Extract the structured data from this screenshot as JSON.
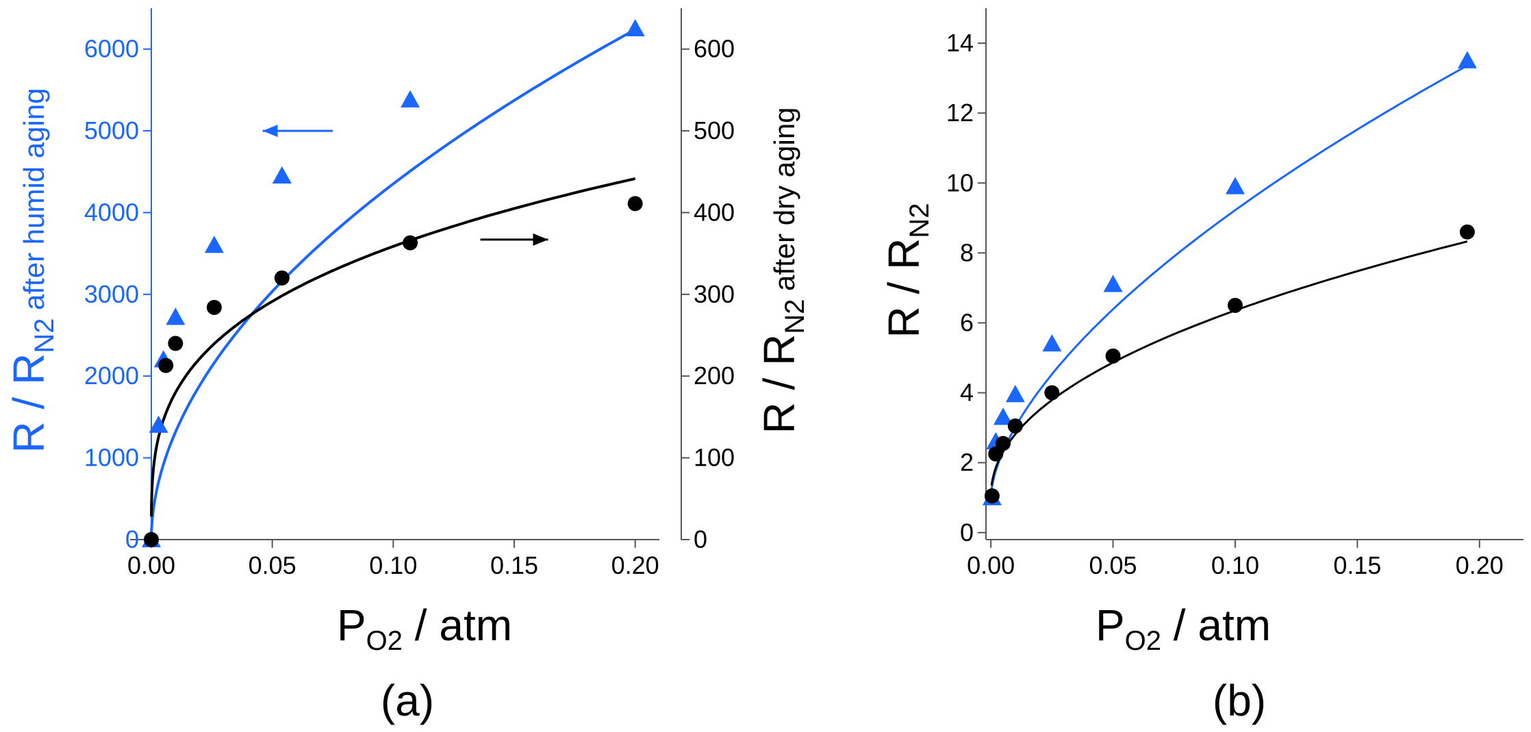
{
  "figure": {
    "panel_a_label": "(a)",
    "panel_b_label": "(b)"
  },
  "colors": {
    "humid": "#1a66ff",
    "dry": "#000000"
  },
  "chart_data": [
    {
      "id": "panel-a",
      "type": "scatter",
      "title": "",
      "xlabel_main": "P",
      "xlabel_sub": "O2",
      "xlabel_suffix": " / atm",
      "xlim": [
        0,
        0.21
      ],
      "xticks": [
        0,
        0.05,
        0.1,
        0.15,
        0.2
      ],
      "xtick_labels": [
        "0.00",
        "0.05",
        "0.10",
        "0.15",
        "0.20"
      ],
      "y_left": {
        "label_prefix": "R / R",
        "label_sub": "N2",
        "label_suffix": " after humid aging",
        "ylim": [
          0,
          6500
        ],
        "ticks": [
          0,
          1000,
          2000,
          3000,
          4000,
          5000,
          6000
        ],
        "tick_labels": [
          "0",
          "1000",
          "2000",
          "3000",
          "4000",
          "5000",
          "6000"
        ],
        "color": "#1a66ff"
      },
      "y_right": {
        "label_prefix": "R / R",
        "label_sub": "N2",
        "label_suffix": " after dry aging",
        "ylim": [
          0,
          650
        ],
        "ticks": [
          0,
          100,
          200,
          300,
          400,
          500,
          600
        ],
        "tick_labels": [
          "0",
          "100",
          "200",
          "300",
          "400",
          "500",
          "600"
        ],
        "color": "#000000"
      },
      "series": [
        {
          "name": "humid aging",
          "axis": "left",
          "marker": "triangle",
          "color": "#1a66ff",
          "x": [
            0,
            0.003,
            0.005,
            0.01,
            0.026,
            0.054,
            0.107,
            0.2
          ],
          "y": [
            0,
            1400,
            2200,
            2720,
            3600,
            4450,
            5380,
            6250
          ],
          "fit": {
            "a": 2.9,
            "b": 14400,
            "n": 0.52,
            "x0": 2e-05,
            "x1": 0.2
          }
        },
        {
          "name": "dry aging",
          "axis": "right",
          "marker": "circle",
          "color": "#000000",
          "x": [
            0,
            0.006,
            0.01,
            0.026,
            0.054,
            0.107,
            0.2
          ],
          "y": [
            0,
            213,
            240,
            284,
            320,
            363,
            411
          ],
          "fit": {
            "a": 0.3,
            "b": 715,
            "n": 0.3,
            "x0": 2e-05,
            "x1": 0.2
          }
        }
      ],
      "annotations": [
        {
          "type": "arrow",
          "direction": "left",
          "points_to": "left axis",
          "color": "#1a66ff",
          "x_from": 0.075,
          "x_to": 0.046,
          "y": 5000,
          "axis": "left"
        },
        {
          "type": "arrow",
          "direction": "right",
          "points_to": "right axis",
          "color": "#000000",
          "x_from": 0.136,
          "x_to": 0.164,
          "y": 367,
          "axis": "right"
        }
      ]
    },
    {
      "id": "panel-b",
      "type": "scatter",
      "title": "",
      "xlabel_main": "P",
      "xlabel_sub": "O2",
      "xlabel_suffix": " / atm",
      "xlim": [
        -0.002,
        0.218
      ],
      "xticks": [
        0,
        0.05,
        0.1,
        0.15,
        0.2
      ],
      "xtick_labels": [
        "0.00",
        "0.05",
        "0.10",
        "0.15",
        "0.20"
      ],
      "y_left": {
        "label_prefix": "R / R",
        "label_sub": "N2",
        "label_suffix": "",
        "ylim": [
          -0.2,
          15
        ],
        "ticks": [
          0,
          2,
          4,
          6,
          8,
          10,
          12,
          14
        ],
        "tick_labels": [
          "0",
          "2",
          "4",
          "6",
          "8",
          "10",
          "12",
          "14"
        ],
        "color": "#000000"
      },
      "series": [
        {
          "name": "humid aging",
          "axis": "left",
          "marker": "triangle",
          "color": "#1a66ff",
          "x": [
            0.0005,
            0.002,
            0.005,
            0.01,
            0.025,
            0.05,
            0.1,
            0.195
          ],
          "y": [
            1.0,
            2.6,
            3.3,
            3.95,
            5.4,
            7.1,
            9.9,
            13.5
          ],
          "fit": {
            "a": 1.0,
            "b": 33.5,
            "n": 0.61,
            "x0": 0.0003,
            "x1": 0.195
          }
        },
        {
          "name": "dry aging",
          "axis": "left",
          "marker": "circle",
          "color": "#000000",
          "x": [
            0.0005,
            0.002,
            0.005,
            0.01,
            0.025,
            0.05,
            0.1,
            0.195
          ],
          "y": [
            1.05,
            2.25,
            2.55,
            3.05,
            4.0,
            5.05,
            6.5,
            8.6
          ],
          "fit": {
            "a": 1.0,
            "b": 15.8,
            "n": 0.47,
            "x0": 0.0003,
            "x1": 0.195
          }
        }
      ],
      "annotations": []
    }
  ]
}
